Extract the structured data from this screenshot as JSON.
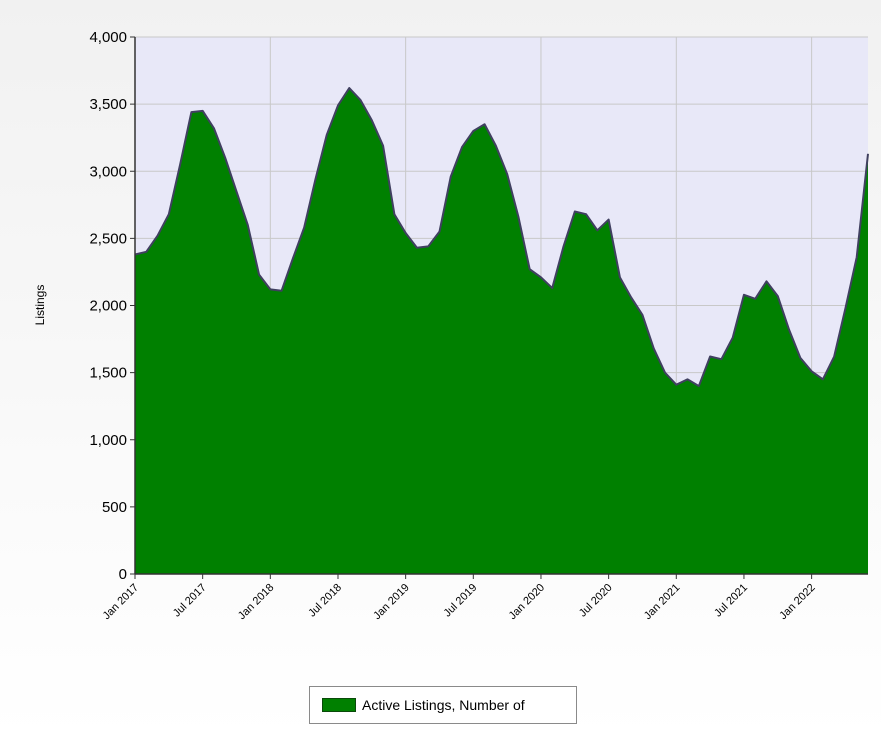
{
  "chart_data": {
    "type": "area",
    "ylabel": "Listings",
    "xlabel": "",
    "ylim": [
      0,
      4000
    ],
    "y_ticks": [
      0,
      500,
      1000,
      1500,
      2000,
      2500,
      3000,
      3500,
      4000
    ],
    "y_tick_labels": [
      "0",
      "500",
      "1,000",
      "1,500",
      "2,000",
      "2,500",
      "3,000",
      "3,500",
      "4,000"
    ],
    "x_tick_labels": [
      "Jan 2017",
      "Jul 2017",
      "Jan 2018",
      "Jul 2018",
      "Jan 2019",
      "Jul 2019",
      "Jan 2020",
      "Jul 2020",
      "Jan 2021",
      "Jul 2021",
      "Jan 2022"
    ],
    "grid": true,
    "legend_position": "bottom",
    "fill_color": "#008000",
    "line_color": "#404060",
    "plot_background": "#e8e8f8",
    "series": [
      {
        "name": "Active Listings, Number of",
        "x": [
          "2017-01",
          "2017-02",
          "2017-03",
          "2017-04",
          "2017-05",
          "2017-06",
          "2017-07",
          "2017-08",
          "2017-09",
          "2017-10",
          "2017-11",
          "2017-12",
          "2018-01",
          "2018-02",
          "2018-03",
          "2018-04",
          "2018-05",
          "2018-06",
          "2018-07",
          "2018-08",
          "2018-09",
          "2018-10",
          "2018-11",
          "2018-12",
          "2019-01",
          "2019-02",
          "2019-03",
          "2019-04",
          "2019-05",
          "2019-06",
          "2019-07",
          "2019-08",
          "2019-09",
          "2019-10",
          "2019-11",
          "2019-12",
          "2020-01",
          "2020-02",
          "2020-03",
          "2020-04",
          "2020-05",
          "2020-06",
          "2020-07",
          "2020-08",
          "2020-09",
          "2020-10",
          "2020-11",
          "2020-12",
          "2021-01",
          "2021-02",
          "2021-03",
          "2021-04",
          "2021-05",
          "2021-06",
          "2021-07",
          "2021-08",
          "2021-09",
          "2021-10",
          "2021-11",
          "2021-12",
          "2022-01",
          "2022-02",
          "2022-03",
          "2022-04",
          "2022-05",
          "2022-06"
        ],
        "values": [
          2380,
          2400,
          2520,
          2680,
          3050,
          3440,
          3450,
          3320,
          3100,
          2850,
          2600,
          2230,
          2120,
          2110,
          2350,
          2580,
          2940,
          3270,
          3490,
          3620,
          3530,
          3380,
          3190,
          2680,
          2540,
          2430,
          2440,
          2550,
          2960,
          3180,
          3300,
          3350,
          3190,
          2980,
          2660,
          2270,
          2210,
          2130,
          2440,
          2700,
          2680,
          2560,
          2640,
          2210,
          2060,
          1930,
          1680,
          1500,
          1410,
          1450,
          1400,
          1620,
          1600,
          1760,
          2080,
          2050,
          2180,
          2070,
          1820,
          1610,
          1510,
          1450,
          1620,
          1980,
          2360,
          3130
        ]
      }
    ]
  }
}
